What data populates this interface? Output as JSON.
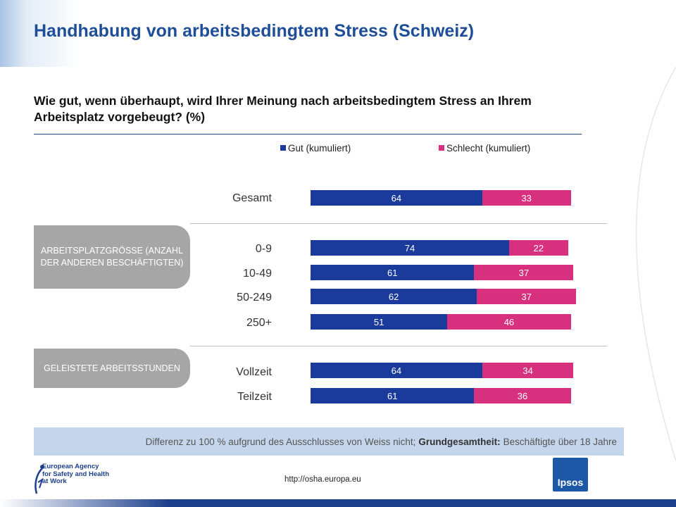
{
  "header": {
    "title": "Handhabung von arbeitsbedingtem Stress (Schweiz)",
    "question": "Wie gut, wenn überhaupt, wird Ihrer Meinung nach arbeitsbedingtem Stress an Ihrem Arbeitsplatz vorgebeugt?  (%)"
  },
  "groups": {
    "size_label": "ARBEITSPLATZGRÖSSE (ANZAHL DER ANDEREN BESCHÄFTIGTEN)",
    "hours_label": "GELEISTETE ARBEITSSTUNDEN"
  },
  "chart_data": {
    "type": "bar",
    "orientation": "horizontal",
    "stacked": true,
    "categories": [
      "Gesamt",
      "0-9",
      "10-49",
      "50-249",
      "250+",
      "Vollzeit",
      "Teilzeit"
    ],
    "series": [
      {
        "name": "Gut (kumuliert)",
        "color": "#1a3a9c",
        "values": [
          64,
          74,
          61,
          62,
          51,
          64,
          61
        ]
      },
      {
        "name": "Schlecht (kumuliert)",
        "color": "#d6307e",
        "values": [
          33,
          22,
          37,
          37,
          46,
          34,
          36
        ]
      }
    ],
    "xlim": [
      0,
      100
    ],
    "legend": "top",
    "data_labels": true
  },
  "footer": {
    "note_prefix": "Differenz zu 100 % aufgrund  des Ausschlusses von Weiss nicht;",
    "note_bold": "Grundgesamtheit:",
    "note_suffix": "Beschäftigte über 18 Jahre",
    "url": "http://osha.europa.eu",
    "agency_line1": "European Agency",
    "agency_line2": "for Safety and Health",
    "agency_line3": "at Work",
    "ipsos": "Ipsos"
  }
}
